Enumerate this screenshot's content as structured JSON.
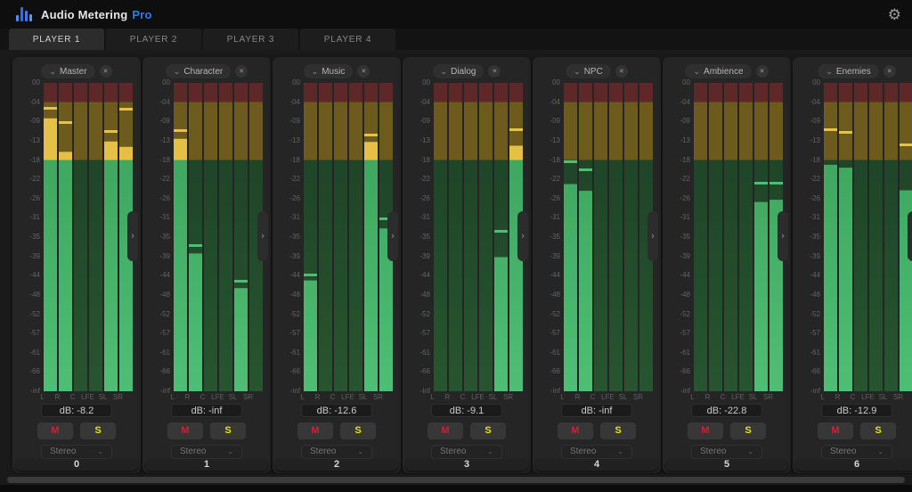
{
  "header": {
    "title": "Audio Metering",
    "title_badge": "Pro",
    "logo_icon": "audio-bars-logo",
    "settings_icon": "gear"
  },
  "tabs": [
    {
      "label": "PLAYER 1",
      "active": true
    },
    {
      "label": "PLAYER 2",
      "active": false
    },
    {
      "label": "PLAYER 3",
      "active": false
    },
    {
      "label": "PLAYER 4",
      "active": false
    }
  ],
  "scale_tick_labels": [
    "00",
    "-04",
    "-09",
    "-13",
    "-18",
    "-22",
    "-26",
    "-31",
    "-35",
    "-39",
    "-44",
    "-48",
    "-52",
    "-57",
    "-61",
    "-66",
    "-inf"
  ],
  "channel_labels": [
    "L",
    "R",
    "C",
    "LFE",
    "SL",
    "SR"
  ],
  "panel_ui": {
    "mute_label": "M",
    "solo_label": "S",
    "mode_value": "Stereo",
    "dropdown_chevron": "⌄",
    "close_icon": "✕",
    "handle_chevron": "›"
  },
  "colors": {
    "accent_blue": "#2f7bf5",
    "lit_red": "#c0392b",
    "lit_yellow": "#e6c044",
    "lit_green_top": "#3fa75f",
    "lit_green_bottom": "#4fbe74",
    "dim_red": "#5e2828",
    "dim_yellow": "#6d5a1d",
    "dim_green": "#1e4527",
    "peak_red": "#cf4a3e",
    "peak_yellow": "#e8c244",
    "peak_green": "#4fbd72",
    "mute_red": "#d21f35",
    "solo_yellow": "#e5df22"
  },
  "meter_zones_db": {
    "red": [
      0,
      -4
    ],
    "yellow": [
      -4,
      -18
    ],
    "green": [
      -18,
      null
    ]
  },
  "panels": [
    {
      "name": "Master",
      "db_readout": "dB: -8.2",
      "index": "0",
      "levels_db": [
        -8.2,
        -15.9,
        null,
        null,
        -13.2,
        -14.6
      ],
      "peaks_db": [
        -5.4,
        -9.2,
        null,
        null,
        -11.0,
        -5.8
      ]
    },
    {
      "name": "Character",
      "db_readout": "dB: -inf",
      "index": "1",
      "levels_db": [
        -12.6,
        -38.4,
        null,
        null,
        -46.6,
        null
      ],
      "peaks_db": [
        -10.8,
        -36.6,
        null,
        null,
        -45.1,
        null
      ]
    },
    {
      "name": "Music",
      "db_readout": "dB: -12.6",
      "index": "2",
      "levels_db": [
        -45.0,
        null,
        null,
        null,
        -13.3,
        -33.2
      ],
      "peaks_db": [
        -43.6,
        null,
        null,
        null,
        -11.7,
        -31.2
      ]
    },
    {
      "name": "Dialog",
      "db_readout": "dB: -9.1",
      "index": "3",
      "levels_db": [
        null,
        null,
        null,
        null,
        -39.2,
        -14.3
      ],
      "peaks_db": [
        null,
        null,
        null,
        null,
        -33.7,
        -10.7
      ]
    },
    {
      "name": "NPC",
      "db_readout": "dB: -inf",
      "index": "4",
      "levels_db": [
        -23.0,
        -24.4,
        null,
        null,
        null,
        null
      ],
      "peaks_db": [
        -18.3,
        -19.9,
        null,
        null,
        null,
        null
      ]
    },
    {
      "name": "Ambience",
      "db_readout": "dB: -22.8",
      "index": "5",
      "levels_db": [
        null,
        null,
        null,
        null,
        -26.9,
        -26.3
      ],
      "peaks_db": [
        null,
        null,
        null,
        null,
        -22.8,
        -22.8
      ]
    },
    {
      "name": "Enemies",
      "db_readout": "dB: -12.9",
      "index": "6",
      "levels_db": [
        -19.0,
        -19.6,
        null,
        null,
        null,
        -24.3
      ],
      "peaks_db": [
        -10.7,
        -11.2,
        null,
        null,
        null,
        -13.9
      ]
    }
  ]
}
